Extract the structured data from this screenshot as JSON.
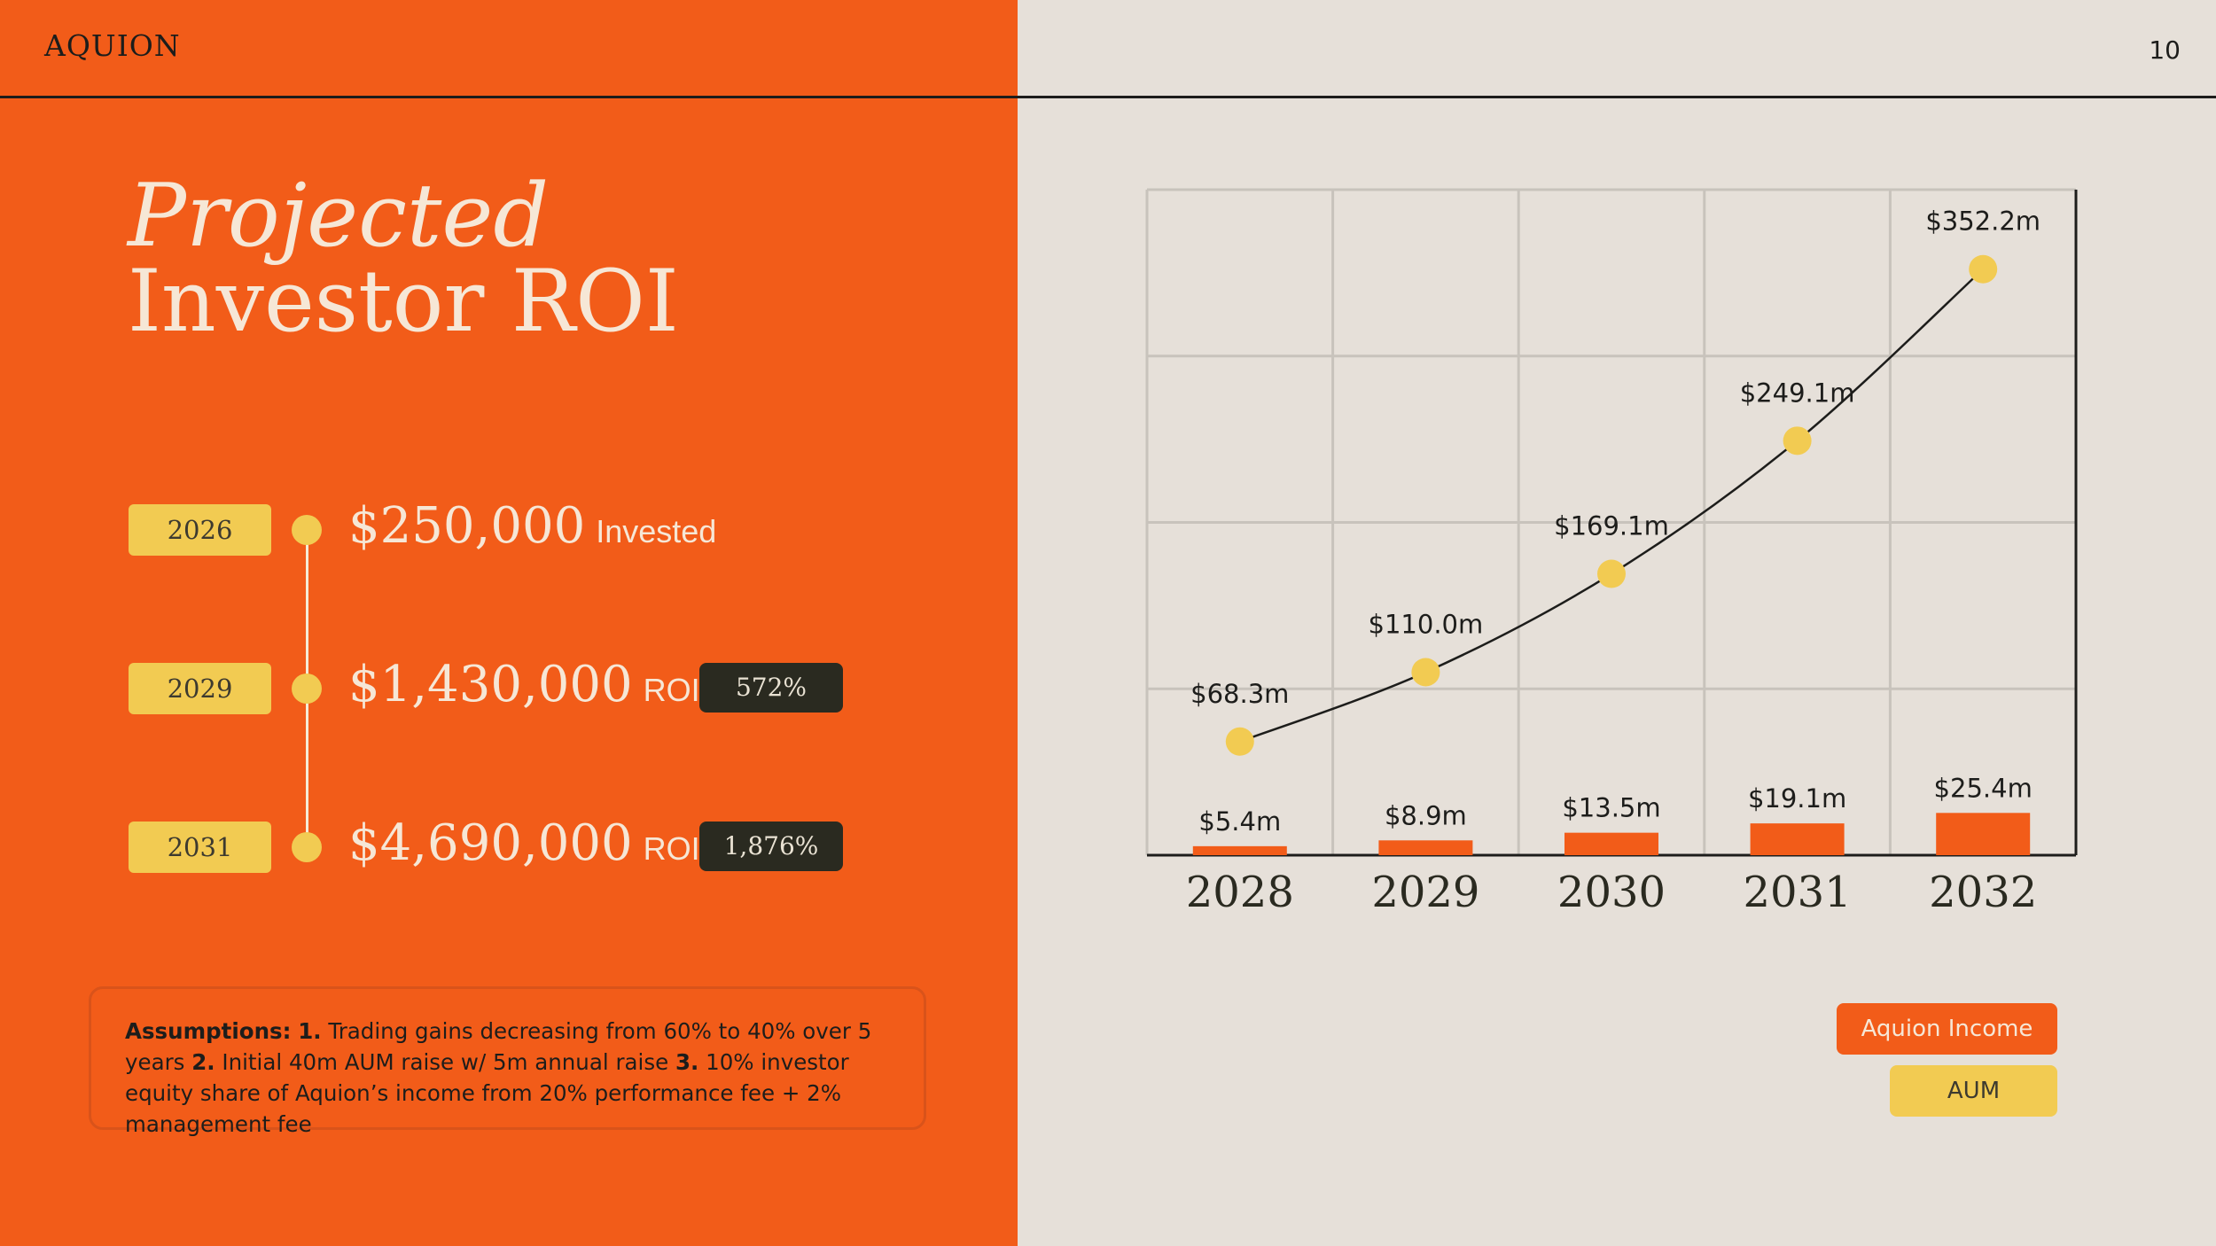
{
  "header": {
    "brand": "AQUION",
    "page_number": "10"
  },
  "title": {
    "line1": "Projected",
    "line2": "Investor ROI"
  },
  "timeline": [
    {
      "year": "2026",
      "amount": "$250,000",
      "label": "Invested",
      "badge": ""
    },
    {
      "year": "2029",
      "amount": "$1,430,000",
      "label": "ROI",
      "badge": "572%"
    },
    {
      "year": "2031",
      "amount": "$4,690,000",
      "label": "ROI",
      "badge": "1,876%"
    }
  ],
  "assumptions": {
    "heading": "Assumptions:",
    "items": [
      {
        "num": "1.",
        "text": " Trading gains decreasing from 60% to 40% over 5 years "
      },
      {
        "num": "2.",
        "text": " Initial 40m AUM raise w/ 5m annual raise "
      },
      {
        "num": "3.",
        "text": " 10% investor equity share of Aquion’s income from 20% performance fee + 2% management fee"
      }
    ]
  },
  "legend": {
    "income": "Aquion Income",
    "aum": "AUM"
  },
  "colors": {
    "orange": "#f25c19",
    "yellow": "#f2cb52",
    "dark": "#2a2a20",
    "cream": "#f6e7d6",
    "panel": "#e6e0d9"
  },
  "chart_data": {
    "type": "bar",
    "categories": [
      "2028",
      "2029",
      "2030",
      "2031",
      "2032"
    ],
    "series": [
      {
        "name": "Aquion Income",
        "type": "bar",
        "values": [
          5.4,
          8.9,
          13.5,
          19.1,
          25.4
        ],
        "labels": [
          "$5.4m",
          "$8.9m",
          "$13.5m",
          "$19.1m",
          "$25.4m"
        ],
        "color": "#f25c19"
      },
      {
        "name": "AUM",
        "type": "line",
        "values": [
          68.3,
          110.0,
          169.1,
          249.1,
          352.2
        ],
        "labels": [
          "$68.3m",
          "$110.0m",
          "$169.1m",
          "$249.1m",
          "$352.2m"
        ],
        "color": "#f2cb52"
      }
    ],
    "ylim": [
      0,
      400
    ],
    "grid": true,
    "legend_position": "bottom-right"
  }
}
